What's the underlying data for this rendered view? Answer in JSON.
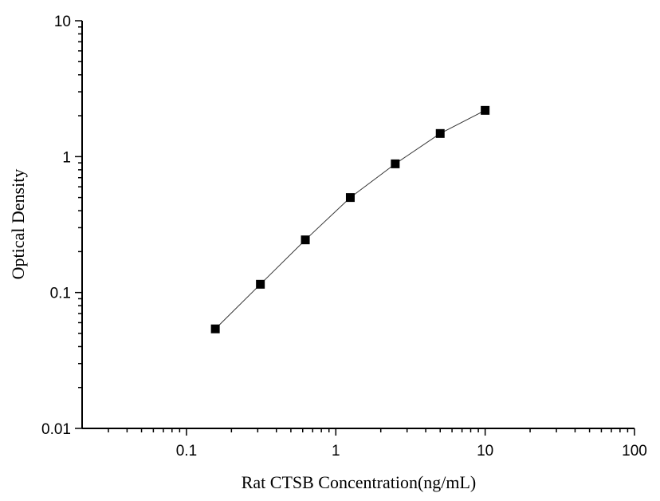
{
  "chart_data": {
    "type": "line",
    "xlabel": "Rat CTSB Concentration(ng/mL)",
    "ylabel": "Optical Density",
    "x": [
      0.156,
      0.3125,
      0.625,
      1.25,
      2.5,
      5,
      10
    ],
    "series": [
      {
        "color": "#000000",
        "values": [
          0.054,
          0.115,
          0.244,
          0.5,
          0.885,
          1.48,
          2.19
        ]
      }
    ],
    "xscale": "log",
    "yscale": "log",
    "xlim": [
      0.02,
      100
    ],
    "ylim": [
      0.01,
      10
    ],
    "xticks": [
      0.1,
      1,
      10,
      100
    ],
    "yticks": [
      0.01,
      0.1,
      1,
      10
    ],
    "minor_ticks": true,
    "marker": "square",
    "grid": false
  }
}
